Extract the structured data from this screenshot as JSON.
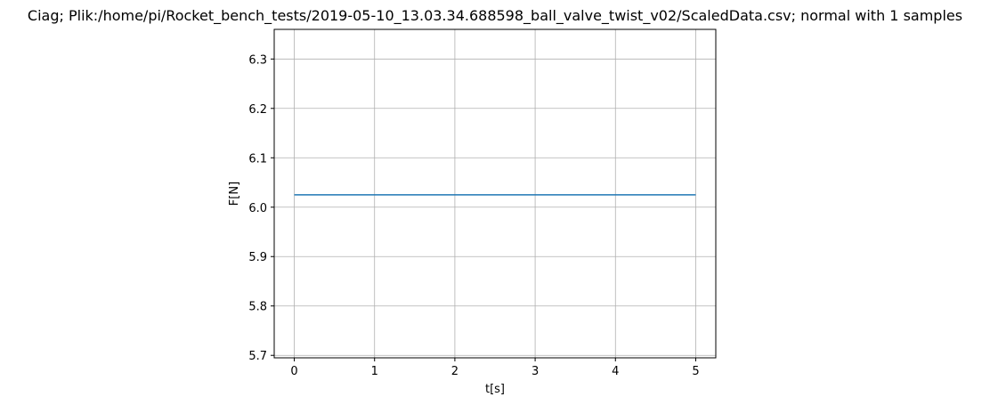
{
  "chart_data": {
    "type": "line",
    "title": "Ciag; Plik:/home/pi/Rocket_bench_tests/2019-05-10_13.03.34.688598_ball_valve_twist_v02/ScaledData.csv; normal with 1 samples",
    "xlabel": "t[s]",
    "ylabel": "F[N]",
    "xlim": [
      -0.25,
      5.25
    ],
    "ylim": [
      5.695,
      6.36
    ],
    "xticks": [
      0,
      1,
      2,
      3,
      4,
      5
    ],
    "xtick_labels": [
      "0",
      "1",
      "2",
      "3",
      "4",
      "5"
    ],
    "yticks": [
      5.7,
      5.8,
      5.9,
      6.0,
      6.1,
      6.2,
      6.3
    ],
    "ytick_labels": [
      "5.7",
      "5.8",
      "5.9",
      "6.0",
      "6.1",
      "6.2",
      "6.3"
    ],
    "grid": true,
    "series": [
      {
        "color": "#1f77b4",
        "x": [
          0,
          5
        ],
        "y": [
          6.025,
          6.025
        ]
      }
    ]
  }
}
